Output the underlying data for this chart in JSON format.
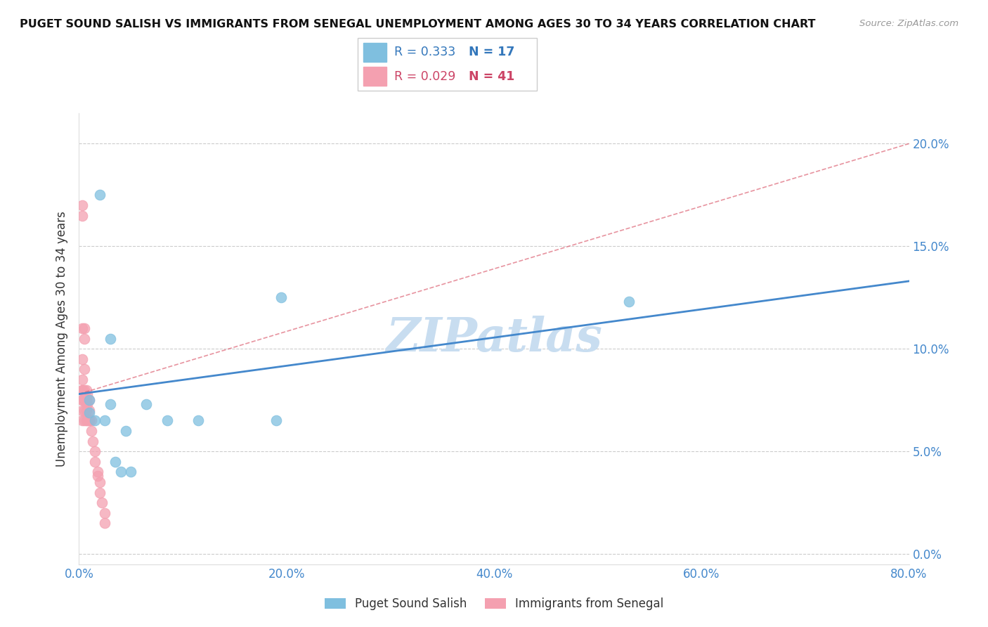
{
  "title": "PUGET SOUND SALISH VS IMMIGRANTS FROM SENEGAL UNEMPLOYMENT AMONG AGES 30 TO 34 YEARS CORRELATION CHART",
  "source": "Source: ZipAtlas.com",
  "ylabel": "Unemployment Among Ages 30 to 34 years",
  "xlim": [
    0,
    0.8
  ],
  "ylim": [
    -0.005,
    0.215
  ],
  "xticks": [
    0.0,
    0.2,
    0.4,
    0.6,
    0.8
  ],
  "yticks": [
    0.0,
    0.05,
    0.1,
    0.15,
    0.2
  ],
  "blue_label": "Puget Sound Salish",
  "pink_label": "Immigrants from Senegal",
  "blue_R": "R = 0.333",
  "blue_N": "N = 17",
  "pink_R": "R = 0.029",
  "pink_N": "N = 41",
  "blue_color": "#7fbfdf",
  "pink_color": "#f4a0b0",
  "blue_line_color": "#4488cc",
  "pink_line_color": "#dd6677",
  "watermark_color": "#c8ddf0",
  "blue_x": [
    0.01,
    0.01,
    0.015,
    0.02,
    0.025,
    0.03,
    0.03,
    0.035,
    0.04,
    0.045,
    0.05,
    0.065,
    0.085,
    0.19,
    0.195,
    0.53,
    0.115
  ],
  "blue_y": [
    0.069,
    0.075,
    0.065,
    0.175,
    0.065,
    0.073,
    0.105,
    0.045,
    0.04,
    0.06,
    0.04,
    0.073,
    0.065,
    0.065,
    0.125,
    0.123,
    0.065
  ],
  "pink_x": [
    0.003,
    0.003,
    0.003,
    0.003,
    0.003,
    0.003,
    0.003,
    0.003,
    0.003,
    0.005,
    0.005,
    0.005,
    0.005,
    0.005,
    0.005,
    0.005,
    0.007,
    0.007,
    0.007,
    0.007,
    0.008,
    0.008,
    0.008,
    0.01,
    0.01,
    0.01,
    0.01,
    0.012,
    0.012,
    0.013,
    0.015,
    0.015,
    0.018,
    0.018,
    0.02,
    0.02,
    0.022,
    0.025,
    0.025,
    0.003,
    0.003
  ],
  "pink_y": [
    0.165,
    0.17,
    0.11,
    0.095,
    0.085,
    0.08,
    0.075,
    0.07,
    0.065,
    0.11,
    0.105,
    0.09,
    0.08,
    0.075,
    0.07,
    0.065,
    0.08,
    0.075,
    0.07,
    0.065,
    0.078,
    0.073,
    0.065,
    0.065,
    0.07,
    0.075,
    0.065,
    0.065,
    0.06,
    0.055,
    0.05,
    0.045,
    0.04,
    0.038,
    0.035,
    0.03,
    0.025,
    0.02,
    0.015,
    0.075,
    0.08
  ],
  "blue_trend": [
    0.078,
    0.133
  ],
  "pink_trend": [
    0.078,
    0.2
  ]
}
